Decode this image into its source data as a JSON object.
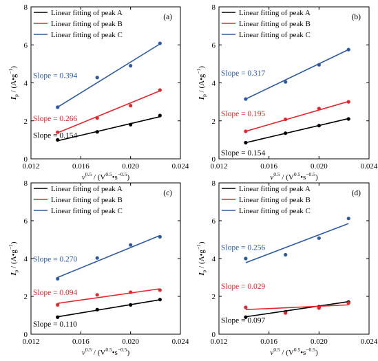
{
  "colors": {
    "A": "#000000",
    "B": "#e8242a",
    "C": "#2b5aa5"
  },
  "legend_labels": [
    "Linear fitting of peak A",
    "Linear fitting of peak B",
    "Linear fitting of peak C"
  ],
  "x_axis": {
    "label_main": "v",
    "label_sup": "0.5",
    "label_rest": " / (V",
    "label_unit_sup1": "0.5",
    "label_mid": "•s",
    "label_unit_sup2": "−0.5",
    "label_end": ")",
    "ticks": [
      "0.012",
      "0.016",
      "0.020",
      "0.024"
    ],
    "tick_values": [
      0.012,
      0.016,
      0.02,
      0.024
    ],
    "range": [
      0.012,
      0.024
    ]
  },
  "y_axis": {
    "label_main": "I",
    "label_sub": "p",
    "label_rest": " / (A•g",
    "label_sup": "−1",
    "label_end": ")",
    "ticks": [
      "0",
      "2",
      "4",
      "6",
      "8"
    ],
    "tick_values": [
      0,
      2,
      4,
      6,
      8
    ],
    "range": [
      0,
      8
    ]
  },
  "chart_data": [
    {
      "type": "scatter",
      "panel": "(a)",
      "x": [
        0.01414,
        0.01732,
        0.02,
        0.02236
      ],
      "series": [
        {
          "name": "Linear fitting of peak A",
          "values": [
            1.0,
            1.42,
            1.8,
            2.28
          ],
          "slope_label": "Slope = 0.154",
          "fit": [
            0.95,
            2.22
          ]
        },
        {
          "name": "Linear fitting of peak B",
          "values": [
            1.4,
            2.15,
            2.8,
            3.62
          ],
          "slope_label": "Slope = 0.266",
          "fit": [
            1.37,
            3.58
          ]
        },
        {
          "name": "Linear fitting of peak C",
          "values": [
            2.72,
            4.28,
            4.9,
            6.08
          ],
          "slope_label": "Slope = 0.394",
          "fit": [
            2.72,
            6.05
          ]
        }
      ]
    },
    {
      "type": "scatter",
      "panel": "(b)",
      "x": [
        0.01414,
        0.01732,
        0.02,
        0.02236
      ],
      "series": [
        {
          "name": "Linear fitting of peak A",
          "values": [
            0.85,
            1.35,
            1.75,
            2.1
          ],
          "slope_label": "Slope = 0.154",
          "fit": [
            0.85,
            2.12
          ]
        },
        {
          "name": "Linear fitting of peak B",
          "values": [
            1.45,
            2.08,
            2.65,
            3.0
          ],
          "slope_label": "Slope = 0.195",
          "fit": [
            1.45,
            3.02
          ]
        },
        {
          "name": "Linear fitting of peak C",
          "values": [
            3.15,
            4.05,
            4.95,
            5.75
          ],
          "slope_label": "Slope = 0.317",
          "fit": [
            3.15,
            5.75
          ]
        }
      ]
    },
    {
      "type": "scatter",
      "panel": "(c)",
      "x": [
        0.01414,
        0.01732,
        0.02,
        0.02236
      ],
      "series": [
        {
          "name": "Linear fitting of peak A",
          "values": [
            0.9,
            1.3,
            1.55,
            1.83
          ],
          "slope_label": "Slope = 0.110",
          "fit": [
            0.92,
            1.82
          ]
        },
        {
          "name": "Linear fitting of peak B",
          "values": [
            1.55,
            2.08,
            2.22,
            2.33
          ],
          "slope_label": "Slope = 0.094",
          "fit": [
            1.63,
            2.4
          ]
        },
        {
          "name": "Linear fitting of peak C",
          "values": [
            2.93,
            4.03,
            4.72,
            5.15
          ],
          "slope_label": "Slope = 0.270",
          "fit": [
            3.0,
            5.22
          ]
        }
      ]
    },
    {
      "type": "scatter",
      "panel": "(d)",
      "x": [
        0.01414,
        0.01732,
        0.02,
        0.02236
      ],
      "series": [
        {
          "name": "Linear fitting of peak A",
          "values": [
            0.9,
            1.18,
            1.45,
            1.7
          ],
          "slope_label": "Slope = 0.097",
          "fit": [
            0.92,
            1.72
          ]
        },
        {
          "name": "Linear fitting of peak B",
          "values": [
            1.42,
            1.12,
            1.38,
            1.65
          ],
          "slope_label": "Slope = 0.029",
          "fit": [
            1.3,
            1.55
          ]
        },
        {
          "name": "Linear fitting of peak C",
          "values": [
            4.0,
            4.2,
            5.08,
            6.12
          ],
          "slope_label": "Slope = 0.256",
          "fit": [
            3.78,
            5.85
          ]
        }
      ]
    }
  ]
}
